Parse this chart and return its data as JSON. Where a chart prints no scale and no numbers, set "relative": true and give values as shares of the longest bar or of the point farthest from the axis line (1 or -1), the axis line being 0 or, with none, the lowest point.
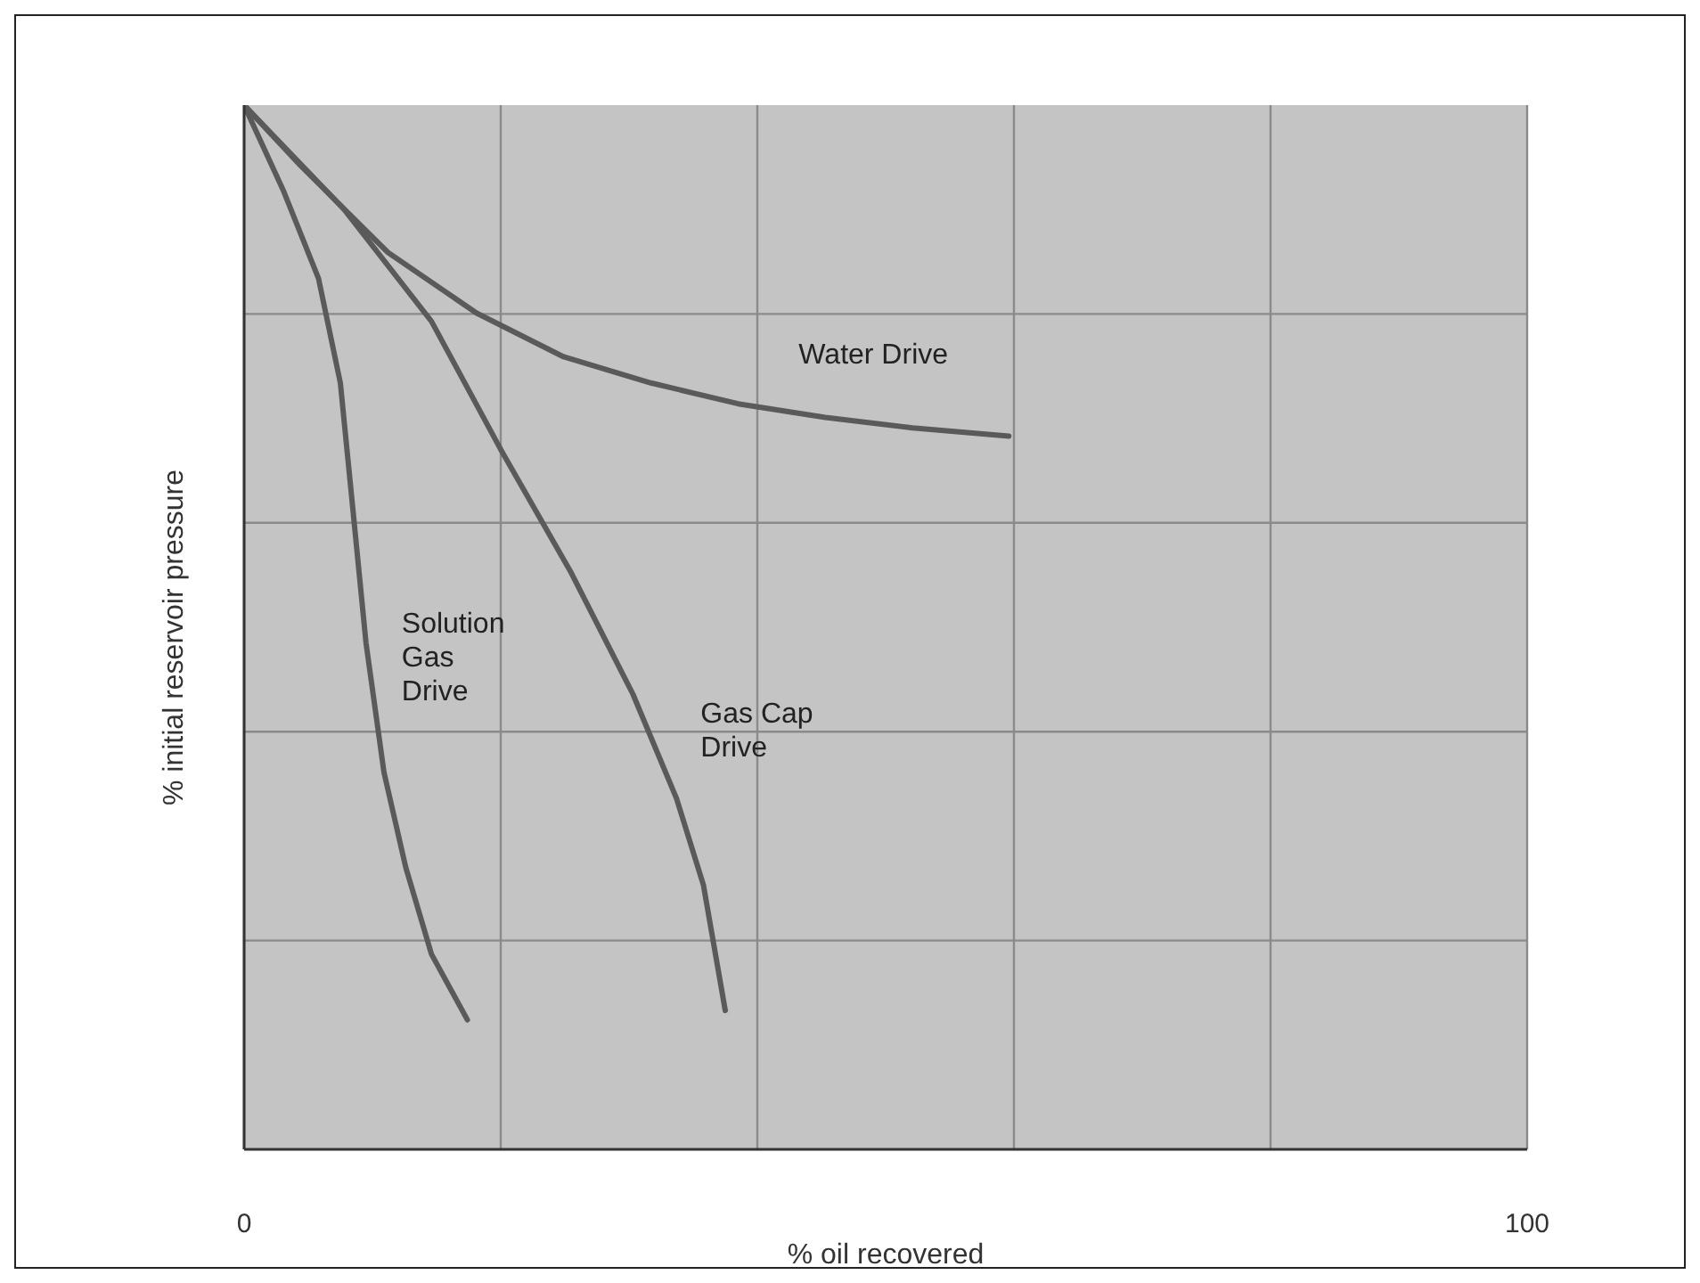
{
  "chart_data": {
    "type": "line",
    "relative": true,
    "xlabel": "% oil recovered",
    "ylabel": "% initial reservoir pressure",
    "xlim": [
      0,
      100
    ],
    "xticks": [
      0,
      {
        "value": 20,
        "label": null
      },
      {
        "value": 40,
        "label": null
      },
      {
        "value": 60,
        "label": null
      },
      {
        "value": 80,
        "label": null
      },
      100
    ],
    "grid": true,
    "legend": false,
    "marker": "none",
    "line_style": "solid",
    "series": [
      {
        "name": "Water Drive",
        "color": "#5a5a5a",
        "x": [
          0,
          4.4,
          11.2,
          18.1,
          24.9,
          31.7,
          38.5,
          45.3,
          52.1,
          59.6
        ],
        "values": [
          1,
          0.942,
          0.859,
          0.801,
          0.759,
          0.734,
          0.714,
          0.701,
          0.691,
          0.683
        ]
      },
      {
        "name": "Solution\nGas\nDrive",
        "color": "#5a5a5a",
        "x": [
          0,
          3.1,
          5.8,
          7.5,
          8.5,
          9.5,
          10.9,
          12.6,
          14.6,
          17.4
        ],
        "values": [
          1,
          0.917,
          0.834,
          0.734,
          0.61,
          0.485,
          0.361,
          0.27,
          0.187,
          0.124
        ]
      },
      {
        "name": "Gas Cap\nDrive",
        "color": "#5a5a5a",
        "x": [
          0,
          7.8,
          14.6,
          20.1,
          25.5,
          30.3,
          33.7,
          35.8,
          37.5
        ],
        "values": [
          1,
          0.9,
          0.793,
          0.668,
          0.552,
          0.436,
          0.336,
          0.253,
          0.133
        ]
      }
    ]
  }
}
